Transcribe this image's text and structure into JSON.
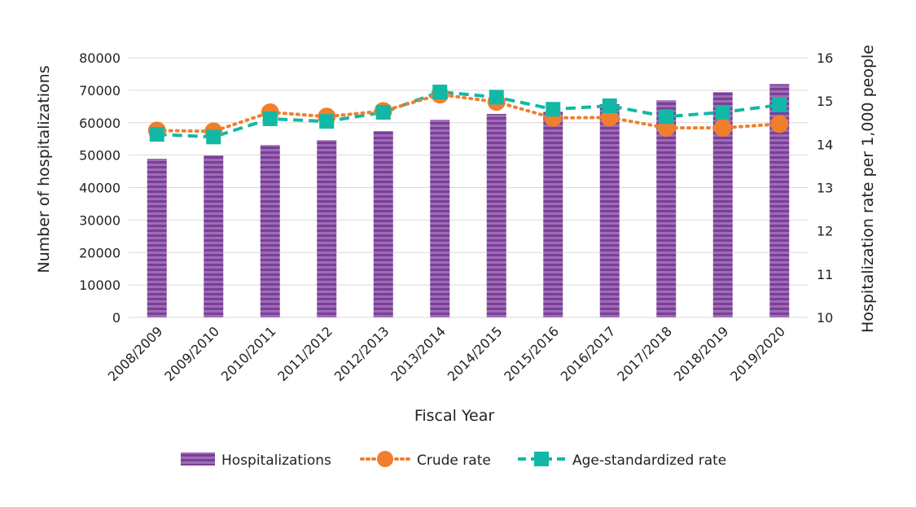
{
  "chart_data": {
    "type": "bar+line",
    "xlabel": "Fiscal Year",
    "ylabel": "Number of hospitalizations",
    "y2label": "Hospitalization rate per 1,000 people",
    "ylim": [
      0,
      80000
    ],
    "y2lim": [
      10,
      16
    ],
    "yticks": [
      "0",
      "10000",
      "20000",
      "30000",
      "40000",
      "50000",
      "60000",
      "70000",
      "80000"
    ],
    "y2ticks": [
      "10",
      "11",
      "12",
      "13",
      "14",
      "15",
      "16"
    ],
    "grid": true,
    "legend_position": "bottom",
    "categories": [
      "2008/2009",
      "2009/2010",
      "2010/2011",
      "2011/2012",
      "2012/2013",
      "2013/2014",
      "2014/2015",
      "2015/2016",
      "2016/2017",
      "2017/2018",
      "2018/2019",
      "2019/2020"
    ],
    "series": [
      {
        "name": "Hospitalizations",
        "type": "bar",
        "axis": "left",
        "color": "#7b3f98",
        "values": [
          48900,
          49900,
          53100,
          54600,
          57400,
          60900,
          62700,
          63400,
          65700,
          66900,
          69400,
          71900
        ]
      },
      {
        "name": "Crude rate",
        "type": "line",
        "style": "dotted",
        "marker": "circle",
        "axis": "right",
        "color": "#f07f2d",
        "values": [
          14.32,
          14.3,
          14.74,
          14.64,
          14.77,
          15.15,
          14.98,
          14.61,
          14.62,
          14.38,
          14.38,
          14.47
        ]
      },
      {
        "name": "Age-standardized rate",
        "type": "line",
        "style": "dashed",
        "marker": "square",
        "axis": "right",
        "color": "#12b8a6",
        "values": [
          14.23,
          14.17,
          14.59,
          14.53,
          14.74,
          15.21,
          15.09,
          14.81,
          14.89,
          14.64,
          14.74,
          14.91
        ]
      }
    ]
  }
}
